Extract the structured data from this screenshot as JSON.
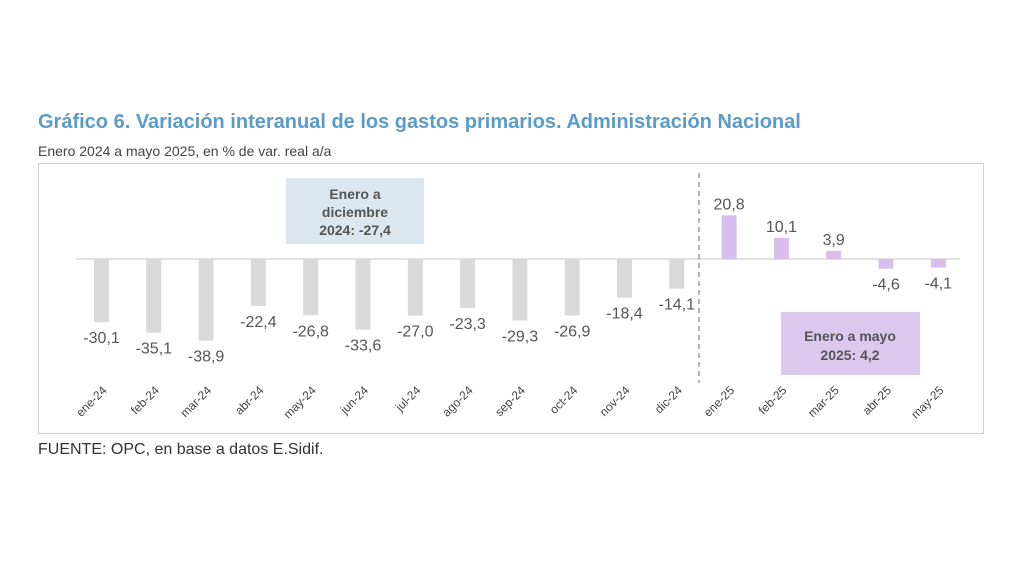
{
  "title": "Gráfico 6. Variación interanual de los gastos primarios. Administración Nacional",
  "subtitle": "Enero 2024 a mayo 2025, en % de var. real a/a",
  "source": "FUENTE: OPC, en base a datos E.Sidif.",
  "annotations": {
    "box_2024": [
      "Enero a",
      "diciembre",
      "2024: -27,4"
    ],
    "box_2025": [
      "Enero a mayo",
      "2025: 4,2"
    ]
  },
  "colors": {
    "bars_2024": "#d9d9d9",
    "bars_2025": "#d8bfed",
    "box_2024": "#dce6f1",
    "box_2025": "#dcc8ef",
    "title": "#5b9bc9"
  },
  "chart_data": {
    "type": "bar",
    "categories": [
      "ene-24",
      "feb-24",
      "mar-24",
      "abr-24",
      "may-24",
      "jun-24",
      "jul-24",
      "ago-24",
      "sep-24",
      "oct-24",
      "nov-24",
      "dic-24",
      "ene-25",
      "feb-25",
      "mar-25",
      "abr-25",
      "may-25"
    ],
    "values": [
      -30.1,
      -35.1,
      -38.9,
      -22.4,
      -26.8,
      -33.6,
      -27.0,
      -23.3,
      -29.3,
      -26.9,
      -18.4,
      -14.1,
      20.8,
      10.1,
      3.9,
      -4.6,
      -4.1
    ],
    "value_labels": [
      "-30,1",
      "-35,1",
      "-38,9",
      "-22,4",
      "-26,8",
      "-33,6",
      "-27,0",
      "-23,3",
      "-29,3",
      "-26,9",
      "-18,4",
      "-14,1",
      "20,8",
      "10,1",
      "3,9",
      "-4,6",
      "-4,1"
    ],
    "title": "Gráfico 6. Variación interanual de los gastos primarios. Administración Nacional",
    "subtitle": "Enero 2024 a mayo 2025, en % de var. real a/a",
    "grid": false,
    "legend": "none"
  }
}
